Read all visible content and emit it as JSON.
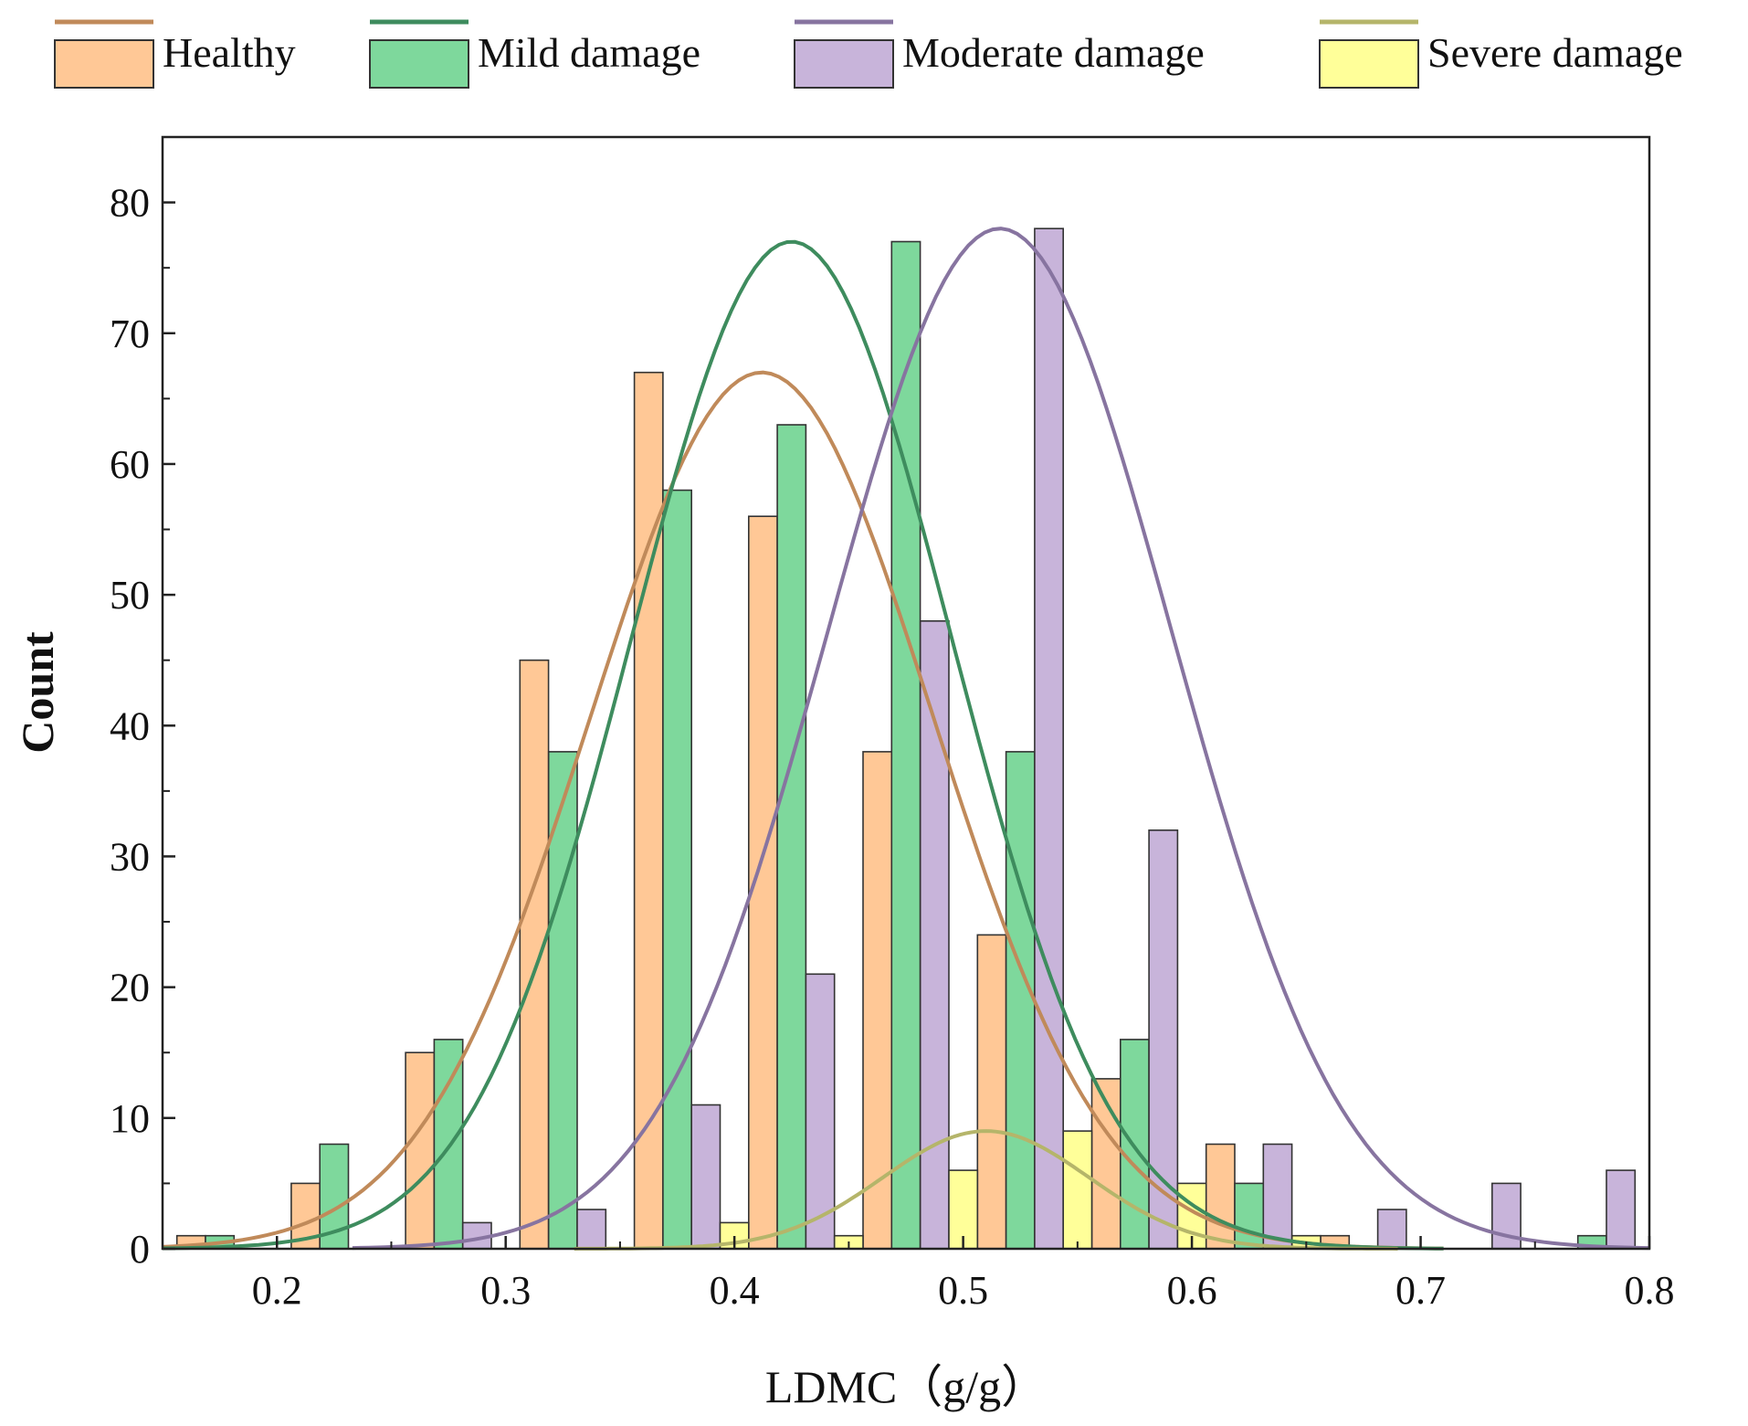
{
  "chart_data": {
    "type": "bar",
    "subtype": "grouped-histogram-with-normal-fits",
    "xlabel": "LDMC（g/g）",
    "ylabel": "Count",
    "xlim": [
      0.15,
      0.8
    ],
    "ylim": [
      0,
      85
    ],
    "x_ticks": [
      0.2,
      0.3,
      0.4,
      0.5,
      0.6,
      0.7,
      0.8
    ],
    "x_tick_labels": [
      "0.2",
      "0.3",
      "0.4",
      "0.5",
      "0.6",
      "0.7",
      "0.8"
    ],
    "y_ticks": [
      0,
      10,
      20,
      30,
      40,
      50,
      60,
      70,
      80
    ],
    "y_tick_labels": [
      "0",
      "10",
      "20",
      "30",
      "40",
      "50",
      "60",
      "70",
      "80"
    ],
    "bin_width": 0.05,
    "bar_width": 0.0125,
    "series": [
      {
        "name": "Healthy",
        "bar_color": "#FFC896",
        "curve_color": "#C08A5A",
        "bars": [
          {
            "x": 0.1625,
            "value": 1
          },
          {
            "x": 0.2125,
            "value": 5
          },
          {
            "x": 0.2625,
            "value": 15
          },
          {
            "x": 0.3125,
            "value": 45
          },
          {
            "x": 0.3625,
            "value": 67
          },
          {
            "x": 0.4125,
            "value": 56
          },
          {
            "x": 0.4625,
            "value": 38
          },
          {
            "x": 0.5125,
            "value": 24
          },
          {
            "x": 0.5625,
            "value": 13
          },
          {
            "x": 0.6125,
            "value": 8
          },
          {
            "x": 0.6625,
            "value": 1
          }
        ],
        "fit": {
          "mean": 0.412,
          "sd": 0.075,
          "peak": 67,
          "range": [
            0.15,
            0.71
          ]
        }
      },
      {
        "name": "Mild damage",
        "bar_color": "#7ED89C",
        "curve_color": "#3E8C5E",
        "bars": [
          {
            "x": 0.175,
            "value": 1
          },
          {
            "x": 0.225,
            "value": 8
          },
          {
            "x": 0.275,
            "value": 16
          },
          {
            "x": 0.325,
            "value": 38
          },
          {
            "x": 0.375,
            "value": 58
          },
          {
            "x": 0.425,
            "value": 63
          },
          {
            "x": 0.475,
            "value": 77
          },
          {
            "x": 0.525,
            "value": 38
          },
          {
            "x": 0.575,
            "value": 16
          },
          {
            "x": 0.625,
            "value": 5
          },
          {
            "x": 0.775,
            "value": 1
          }
        ],
        "fit": {
          "mean": 0.425,
          "sd": 0.07,
          "peak": 77,
          "range": [
            0.15,
            0.71
          ]
        }
      },
      {
        "name": "Moderate damage",
        "bar_color": "#C8B4DA",
        "curve_color": "#8774A0",
        "bars": [
          {
            "x": 0.2875,
            "value": 2
          },
          {
            "x": 0.3375,
            "value": 3
          },
          {
            "x": 0.3875,
            "value": 11
          },
          {
            "x": 0.4375,
            "value": 21
          },
          {
            "x": 0.4875,
            "value": 48
          },
          {
            "x": 0.5375,
            "value": 78
          },
          {
            "x": 0.5875,
            "value": 32
          },
          {
            "x": 0.6375,
            "value": 8
          },
          {
            "x": 0.6875,
            "value": 3
          },
          {
            "x": 0.7375,
            "value": 5
          },
          {
            "x": 0.7875,
            "value": 6
          }
        ],
        "fit": {
          "mean": 0.516,
          "sd": 0.075,
          "peak": 78,
          "range": [
            0.233,
            0.8
          ]
        }
      },
      {
        "name": "Severe damage",
        "bar_color": "#FFFF99",
        "curve_color": "#B5B56A",
        "bars": [
          {
            "x": 0.4,
            "value": 2
          },
          {
            "x": 0.45,
            "value": 1
          },
          {
            "x": 0.5,
            "value": 6
          },
          {
            "x": 0.55,
            "value": 9
          },
          {
            "x": 0.6,
            "value": 5
          },
          {
            "x": 0.65,
            "value": 1
          }
        ],
        "fit": {
          "mean": 0.51,
          "sd": 0.045,
          "peak": 9,
          "range": [
            0.33,
            0.69
          ]
        }
      }
    ]
  }
}
